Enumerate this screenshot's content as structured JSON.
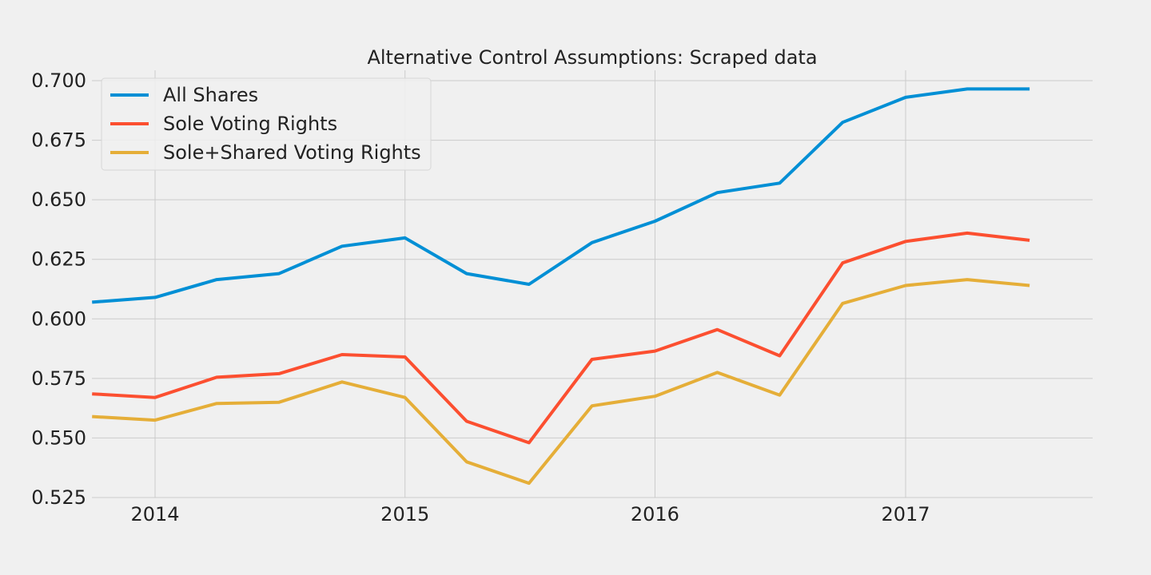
{
  "chart_data": {
    "type": "line",
    "title": "Alternative Control Assumptions: Scraped data",
    "xlabel": "",
    "ylabel": "",
    "xlim": [
      "2013-10-01",
      "2017-10-01"
    ],
    "ylim": [
      0.525,
      0.705
    ],
    "x_ticks": [
      {
        "value": "2014-01-01",
        "label": "2014"
      },
      {
        "value": "2015-01-01",
        "label": "2015"
      },
      {
        "value": "2016-01-01",
        "label": "2016"
      },
      {
        "value": "2017-01-01",
        "label": "2017"
      }
    ],
    "y_ticks": [
      {
        "value": 0.525,
        "label": "0.525"
      },
      {
        "value": 0.55,
        "label": "0.550"
      },
      {
        "value": 0.575,
        "label": "0.575"
      },
      {
        "value": 0.6,
        "label": "0.600"
      },
      {
        "value": 0.625,
        "label": "0.625"
      },
      {
        "value": 0.65,
        "label": "0.650"
      },
      {
        "value": 0.675,
        "label": "0.675"
      },
      {
        "value": 0.7,
        "label": "0.700"
      }
    ],
    "grid": true,
    "legend": "top-left",
    "x": [
      "2013-10-01",
      "2014-01-01",
      "2014-04-01",
      "2014-07-01",
      "2014-10-01",
      "2015-01-01",
      "2015-04-01",
      "2015-07-01",
      "2015-10-01",
      "2016-01-01",
      "2016-04-01",
      "2016-07-01",
      "2016-10-01",
      "2017-01-01",
      "2017-04-01",
      "2017-07-01"
    ],
    "series": [
      {
        "name": "All Shares",
        "color": "#008fd5",
        "values": [
          0.607,
          0.609,
          0.6165,
          0.619,
          0.6305,
          0.634,
          0.619,
          0.6145,
          0.632,
          0.641,
          0.653,
          0.657,
          0.6825,
          0.693,
          0.6965,
          0.6965
        ]
      },
      {
        "name": "Sole Voting Rights",
        "color": "#fc4f30",
        "values": [
          0.5685,
          0.567,
          0.5755,
          0.577,
          0.585,
          0.584,
          0.557,
          0.548,
          0.583,
          0.5865,
          0.5955,
          0.5845,
          0.6235,
          0.6325,
          0.636,
          0.633
        ]
      },
      {
        "name": "Sole+Shared Voting Rights",
        "color": "#e5ae38",
        "values": [
          0.559,
          0.5575,
          0.5645,
          0.565,
          0.5735,
          0.567,
          0.54,
          0.531,
          0.5635,
          0.5675,
          0.5775,
          0.568,
          0.6065,
          0.614,
          0.6165,
          0.614
        ]
      }
    ]
  }
}
